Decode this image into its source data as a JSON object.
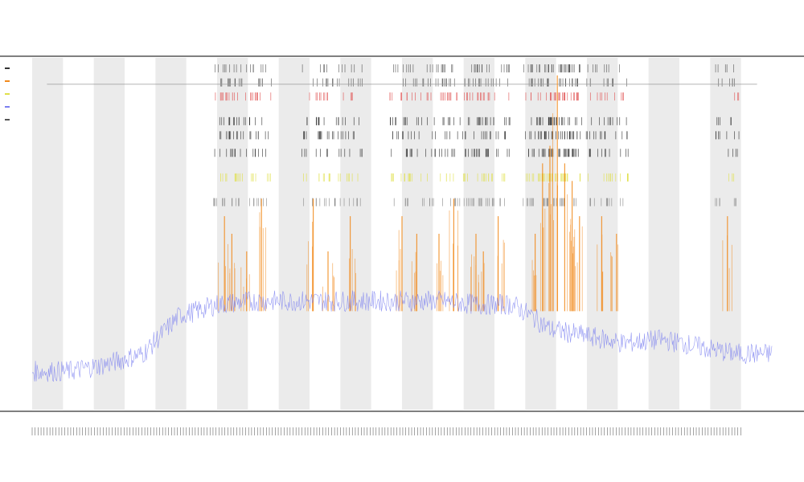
{
  "chart_data": {
    "type": "line",
    "title": "",
    "subtitle_lines": [
      "",
      ""
    ],
    "xlabel": "",
    "ylabel": "",
    "legend_entries": [],
    "legend_placement": "top-left",
    "grid": false,
    "ylim": [
      0,
      1
    ],
    "x_range": [
      0,
      1
    ],
    "band_count": 12,
    "series": [
      {
        "style": "blue-signal",
        "color": "#7b7ff0",
        "x": [
          0.0,
          0.05,
          0.1,
          0.15,
          0.2,
          0.22,
          0.25,
          0.3,
          0.35,
          0.4,
          0.45,
          0.5,
          0.55,
          0.6,
          0.65,
          0.68,
          0.7,
          0.75,
          0.8,
          0.85,
          0.88,
          0.9,
          0.95,
          1.0
        ],
        "values": [
          0.1,
          0.1,
          0.12,
          0.15,
          0.26,
          0.27,
          0.29,
          0.3,
          0.3,
          0.3,
          0.3,
          0.3,
          0.3,
          0.29,
          0.29,
          0.25,
          0.22,
          0.2,
          0.18,
          0.19,
          0.18,
          0.17,
          0.15,
          0.15
        ]
      }
    ],
    "peak_series": {
      "color": "#f28a1c",
      "x": [
        0.26,
        0.27,
        0.29,
        0.31,
        0.38,
        0.4,
        0.43,
        0.5,
        0.52,
        0.55,
        0.57,
        0.6,
        0.61,
        0.63,
        0.68,
        0.69,
        0.7,
        0.71,
        0.72,
        0.73,
        0.74,
        0.77,
        0.79,
        0.94
      ],
      "values": [
        0.55,
        0.5,
        0.45,
        0.6,
        0.6,
        0.45,
        0.55,
        0.55,
        0.5,
        0.5,
        0.6,
        0.5,
        0.45,
        0.55,
        0.5,
        0.7,
        0.75,
        0.95,
        0.7,
        0.65,
        0.55,
        0.55,
        0.5,
        0.55
      ]
    },
    "marker_rows": [
      {
        "color": "#555555",
        "level": 0.97
      },
      {
        "color": "#555555",
        "level": 0.93
      },
      {
        "color": "#e05050",
        "level": 0.89
      },
      {
        "color": "#333333",
        "level": 0.82
      },
      {
        "color": "#333333",
        "level": 0.78
      },
      {
        "color": "#333333",
        "level": 0.73
      },
      {
        "color": "#e0e04a",
        "level": 0.66
      },
      {
        "color": "#888888",
        "level": 0.59
      }
    ],
    "colors": {
      "band": "#ebebeb",
      "axis": "#333333",
      "reference_line": "#999999"
    }
  }
}
